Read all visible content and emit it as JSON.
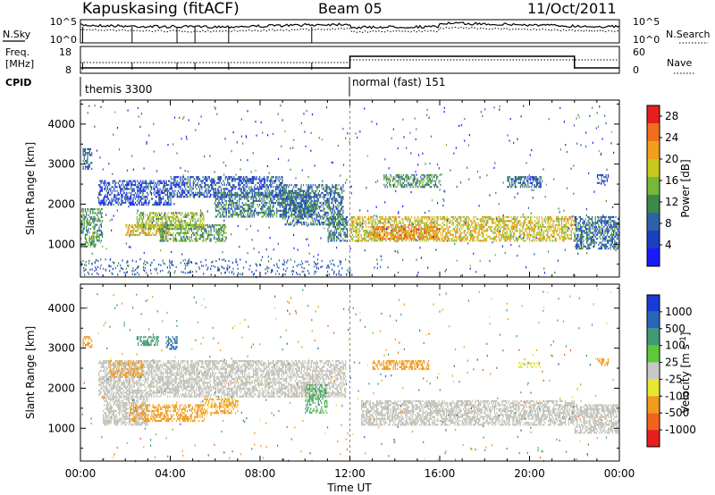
{
  "header": {
    "station": "Kapuskasing (fitACF)",
    "beam": "Beam 05",
    "date": "11/Oct/2011"
  },
  "summary_panel": {
    "nsky_label": "N.Sky",
    "nsearch_label": "N.Search",
    "noise_ticks": [
      "10^5",
      "10^0"
    ],
    "freq_label_1": "Freq.",
    "freq_label_2": "[MHz]",
    "freq_ticks": [
      "18",
      "8"
    ],
    "nave_label": "Nave",
    "nave_ticks": [
      "60",
      "0"
    ],
    "cpid_label": "CPID",
    "cpid_segments": [
      {
        "label": "themis 3300",
        "start_hour": 0,
        "end_hour": 12
      },
      {
        "label": "normal (fast) 151",
        "start_hour": 12,
        "end_hour": 24
      }
    ]
  },
  "x_axis": {
    "label": "Time UT",
    "ticks": [
      "00:00",
      "04:00",
      "08:00",
      "12:00",
      "16:00",
      "20:00",
      "00:00"
    ]
  },
  "colors": {
    "power_scale": [
      "#1a1aff",
      "#1c3fbf",
      "#2e62a8",
      "#3c8a4a",
      "#76b83a",
      "#c8c81e",
      "#f0a01e",
      "#f06e1e",
      "#e61e1e"
    ],
    "velocity_scale": [
      "#1a3ad6",
      "#2a66b8",
      "#3f9a78",
      "#5cc83a",
      "#c8c8c8",
      "#e6e633",
      "#f09a1e",
      "#f0641e",
      "#e61e1e"
    ],
    "ground_scatter": "#c0c0b8"
  },
  "chart_data": [
    {
      "type": "heatmap",
      "title": "Power",
      "ylabel": "Slant Range [km]",
      "xlabel": "Time UT",
      "xlim": [
        0,
        24
      ],
      "ylim": [
        180,
        4600
      ],
      "yticks": [
        1000,
        2000,
        3000,
        4000
      ],
      "colorbar": {
        "label": "Power [dB]",
        "ticks": [
          4,
          8,
          12,
          16,
          20,
          24,
          28
        ],
        "range": [
          0,
          30
        ]
      },
      "blobs": [
        {
          "t0": 0.1,
          "t1": 0.5,
          "r0": 2900,
          "r1": 3400,
          "value": 8
        },
        {
          "t0": 0.0,
          "t1": 1.0,
          "r0": 950,
          "r1": 1900,
          "value": 12
        },
        {
          "t0": 0.8,
          "t1": 4.0,
          "r0": 2000,
          "r1": 2600,
          "value": 6
        },
        {
          "t0": 2.0,
          "t1": 4.0,
          "r0": 1250,
          "r1": 1500,
          "value": 20
        },
        {
          "t0": 2.5,
          "t1": 5.5,
          "r0": 1400,
          "r1": 1800,
          "value": 16
        },
        {
          "t0": 3.5,
          "t1": 6.5,
          "r0": 1100,
          "r1": 1500,
          "value": 13
        },
        {
          "t0": 4.0,
          "t1": 9.0,
          "r0": 2200,
          "r1": 2700,
          "value": 7
        },
        {
          "t0": 6.0,
          "t1": 10.5,
          "r0": 1700,
          "r1": 2300,
          "value": 10
        },
        {
          "t0": 9.0,
          "t1": 11.7,
          "r0": 1500,
          "r1": 2500,
          "value": 9
        },
        {
          "t0": 11.0,
          "t1": 11.9,
          "r0": 1100,
          "r1": 1700,
          "value": 10
        },
        {
          "t0": 12.0,
          "t1": 22.0,
          "r0": 1100,
          "r1": 1700,
          "value": 19
        },
        {
          "t0": 13.0,
          "t1": 16.0,
          "r0": 1150,
          "r1": 1450,
          "value": 23
        },
        {
          "t0": 13.5,
          "t1": 16.0,
          "r0": 2450,
          "r1": 2750,
          "value": 12
        },
        {
          "t0": 19.0,
          "t1": 20.5,
          "r0": 2450,
          "r1": 2700,
          "value": 8
        },
        {
          "t0": 22.0,
          "t1": 24.0,
          "r0": 900,
          "r1": 1700,
          "value": 9
        },
        {
          "t0": 23.0,
          "t1": 23.5,
          "r0": 2550,
          "r1": 2750,
          "value": 6
        }
      ]
    },
    {
      "type": "heatmap",
      "title": "Velocity",
      "ylabel": "Slant Range [km]",
      "xlabel": "Time UT",
      "xlim": [
        0,
        24
      ],
      "ylim": [
        180,
        4600
      ],
      "yticks": [
        1000,
        2000,
        3000,
        4000
      ],
      "colorbar": {
        "label": "Velocity [m s^-1]",
        "ticks": [
          1000,
          500,
          100,
          25,
          -25,
          -100,
          -500,
          -1000
        ]
      },
      "ground_scatter": [
        {
          "t0": 0.8,
          "t1": 11.8,
          "r0": 1800,
          "r1": 2700
        },
        {
          "t0": 1.0,
          "t1": 3.0,
          "r0": 1100,
          "r1": 1800
        },
        {
          "t0": 12.5,
          "t1": 22.0,
          "r0": 1100,
          "r1": 1700
        },
        {
          "t0": 22.0,
          "t1": 24.0,
          "r0": 900,
          "r1": 1600
        }
      ],
      "blobs": [
        {
          "t0": 0.1,
          "t1": 0.5,
          "r0": 3050,
          "r1": 3300,
          "value": -200
        },
        {
          "t0": 1.3,
          "t1": 2.8,
          "r0": 2300,
          "r1": 2700,
          "value": -200
        },
        {
          "t0": 2.5,
          "t1": 3.5,
          "r0": 3100,
          "r1": 3300,
          "value": 300
        },
        {
          "t0": 3.8,
          "t1": 4.3,
          "r0": 3000,
          "r1": 3300,
          "value": 600
        },
        {
          "t0": 2.2,
          "t1": 5.5,
          "r0": 1200,
          "r1": 1600,
          "value": -300
        },
        {
          "t0": 5.5,
          "t1": 7.0,
          "r0": 1400,
          "r1": 1750,
          "value": -150
        },
        {
          "t0": 10.0,
          "t1": 11.0,
          "r0": 1400,
          "r1": 2100,
          "value": 120
        },
        {
          "t0": 13.0,
          "t1": 15.5,
          "r0": 2500,
          "r1": 2700,
          "value": -200
        },
        {
          "t0": 19.5,
          "t1": 20.5,
          "r0": 2550,
          "r1": 2650,
          "value": -60
        },
        {
          "t0": 23.0,
          "t1": 23.5,
          "r0": 2600,
          "r1": 2750,
          "value": -200
        }
      ]
    }
  ]
}
